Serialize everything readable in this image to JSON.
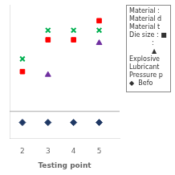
{
  "chart_data": {
    "type": "scatter",
    "xlabel": "Testing point",
    "series": [
      {
        "color": "#00b050",
        "marker": "x",
        "x": [
          2,
          3,
          4,
          5
        ],
        "values": [
          3.5,
          4.4,
          4.4,
          4.4
        ]
      },
      {
        "color": "#ff0000",
        "marker": "square",
        "x": [
          2,
          3,
          4,
          5
        ],
        "values": [
          3.1,
          4.1,
          4.1,
          4.7
        ]
      },
      {
        "color": "#7030a0",
        "marker": "triangle",
        "x": [
          3,
          5
        ],
        "values": [
          3.0,
          4.0
        ]
      },
      {
        "color": "#1f3864",
        "marker": "diamond",
        "x": [
          2,
          3,
          4,
          5
        ],
        "values": [
          1.5,
          1.5,
          1.5,
          1.5
        ]
      }
    ],
    "xlim": [
      1.5,
      5.8
    ],
    "xticks": [
      2,
      3,
      4,
      5
    ],
    "ylim": [
      1.0,
      5.2
    ],
    "grid": false,
    "tick_labels": "x",
    "hline": {
      "y": 1.85,
      "color": "#aaaaaa"
    },
    "annotations": [
      "Material :",
      "Material d",
      "Material t",
      "Die size : ■",
      "           :",
      "           ▲",
      "Explosive",
      "Lubricant",
      "Pressure p",
      "◆  Befo"
    ]
  }
}
